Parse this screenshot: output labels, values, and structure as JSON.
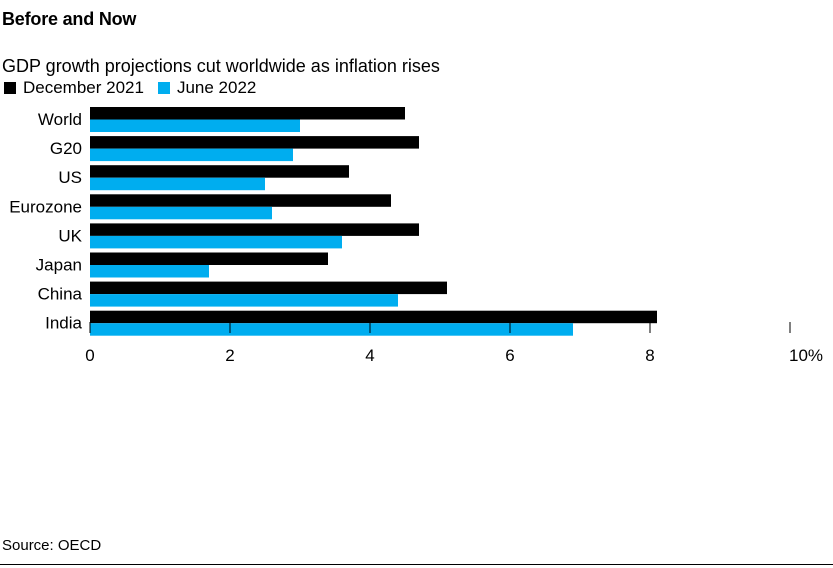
{
  "colors": {
    "series_1": "#000000",
    "series_2": "#00adef",
    "text": "#000000",
    "tick": "#000000"
  },
  "source": "Source: OECD",
  "chart_data": {
    "type": "bar",
    "orientation": "horizontal",
    "title": "Before and Now",
    "subtitle": "GDP growth projections cut worldwide as inflation rises",
    "categories": [
      "World",
      "G20",
      "US",
      "Eurozone",
      "UK",
      "Japan",
      "China",
      "India"
    ],
    "series": [
      {
        "name": "December 2021",
        "values": [
          4.5,
          4.7,
          3.7,
          4.3,
          4.7,
          3.4,
          5.1,
          8.1
        ]
      },
      {
        "name": "June 2022",
        "values": [
          3.0,
          2.9,
          2.5,
          2.6,
          3.6,
          1.7,
          4.4,
          6.9
        ]
      }
    ],
    "xlim": [
      0,
      10
    ],
    "x_ticks": [
      0,
      2,
      4,
      6,
      8,
      10
    ],
    "x_tick_labels": [
      "0",
      "2",
      "4",
      "6",
      "8",
      "10%"
    ],
    "xlabel": "",
    "ylabel": "",
    "grid": false,
    "legend_position": "top-left"
  }
}
